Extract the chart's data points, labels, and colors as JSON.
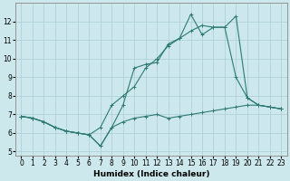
{
  "xlabel": "Humidex (Indice chaleur)",
  "background_color": "#cce8ec",
  "grid_color": "#aacdd4",
  "line_color": "#2d7a72",
  "xlim": [
    -0.5,
    23.5
  ],
  "ylim": [
    4.8,
    13.0
  ],
  "xticks": [
    0,
    1,
    2,
    3,
    4,
    5,
    6,
    7,
    8,
    9,
    10,
    11,
    12,
    13,
    14,
    15,
    16,
    17,
    18,
    19,
    20,
    21,
    22,
    23
  ],
  "yticks": [
    5,
    6,
    7,
    8,
    9,
    10,
    11,
    12
  ],
  "line1_x": [
    0,
    1,
    2,
    3,
    4,
    5,
    6,
    7,
    8,
    9,
    10,
    11,
    12,
    13,
    14,
    15,
    16,
    17,
    18,
    19,
    20,
    21,
    22,
    23
  ],
  "line1_y": [
    6.9,
    6.8,
    6.6,
    6.3,
    6.1,
    6.0,
    5.9,
    5.3,
    6.3,
    6.6,
    6.8,
    6.9,
    7.0,
    6.8,
    6.9,
    7.0,
    7.1,
    7.2,
    7.3,
    7.4,
    7.5,
    7.5,
    7.4,
    7.3
  ],
  "line2_x": [
    0,
    1,
    2,
    3,
    4,
    5,
    6,
    7,
    8,
    9,
    10,
    11,
    12,
    13,
    14,
    15,
    16,
    17,
    18,
    19,
    20,
    21,
    22,
    23
  ],
  "line2_y": [
    6.9,
    6.8,
    6.6,
    6.3,
    6.1,
    6.0,
    5.9,
    5.3,
    6.3,
    7.5,
    9.5,
    9.7,
    9.8,
    10.8,
    11.1,
    12.4,
    11.3,
    11.7,
    11.7,
    12.3,
    7.9,
    7.5,
    7.4,
    7.3
  ],
  "line3_x": [
    0,
    1,
    2,
    3,
    4,
    5,
    6,
    7,
    8,
    9,
    10,
    11,
    12,
    13,
    14,
    15,
    16,
    17,
    18,
    19,
    20,
    21,
    22,
    23
  ],
  "line3_y": [
    6.9,
    6.8,
    6.6,
    6.3,
    6.1,
    6.0,
    5.9,
    6.3,
    7.5,
    8.0,
    8.5,
    9.5,
    10.0,
    10.7,
    11.1,
    11.5,
    11.8,
    11.7,
    11.7,
    9.0,
    7.9,
    7.5,
    7.4,
    7.3
  ]
}
